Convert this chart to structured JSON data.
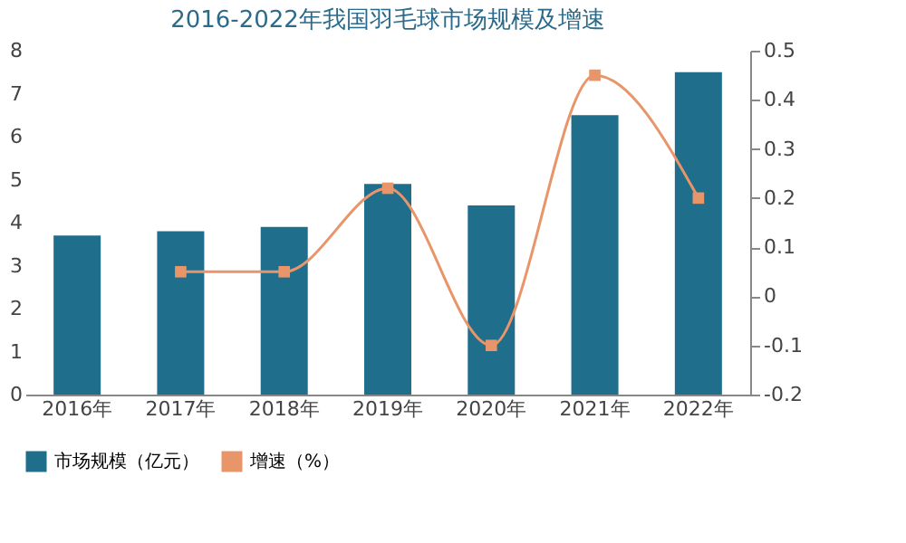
{
  "chart_data": {
    "type": "bar",
    "title": "2016-2022年我国羽毛球市场规模及增速",
    "categories": [
      "2016年",
      "2017年",
      "2018年",
      "2019年",
      "2020年",
      "2021年",
      "2022年"
    ],
    "series": [
      {
        "name": "市场规模（亿元）",
        "color": "#1f6e8c",
        "values": [
          3.7,
          3.8,
          3.9,
          4.9,
          4.4,
          6.5,
          7.5
        ]
      },
      {
        "name": "增速（%）",
        "type": "line",
        "axis": "y2",
        "color": "#e8956a",
        "marker": "square",
        "values": [
          null,
          0.05,
          0.05,
          0.22,
          -0.1,
          0.45,
          0.2
        ]
      }
    ],
    "ylim": [
      0,
      8
    ],
    "yticks": [
      0,
      1,
      2,
      3,
      4,
      5,
      6,
      7,
      8
    ],
    "y2lim": [
      -0.2,
      0.5
    ],
    "y2ticks": [
      -0.2,
      -0.1,
      0,
      0.1,
      0.2,
      0.3,
      0.4,
      0.5
    ],
    "grid": false,
    "legend": "bottom"
  }
}
